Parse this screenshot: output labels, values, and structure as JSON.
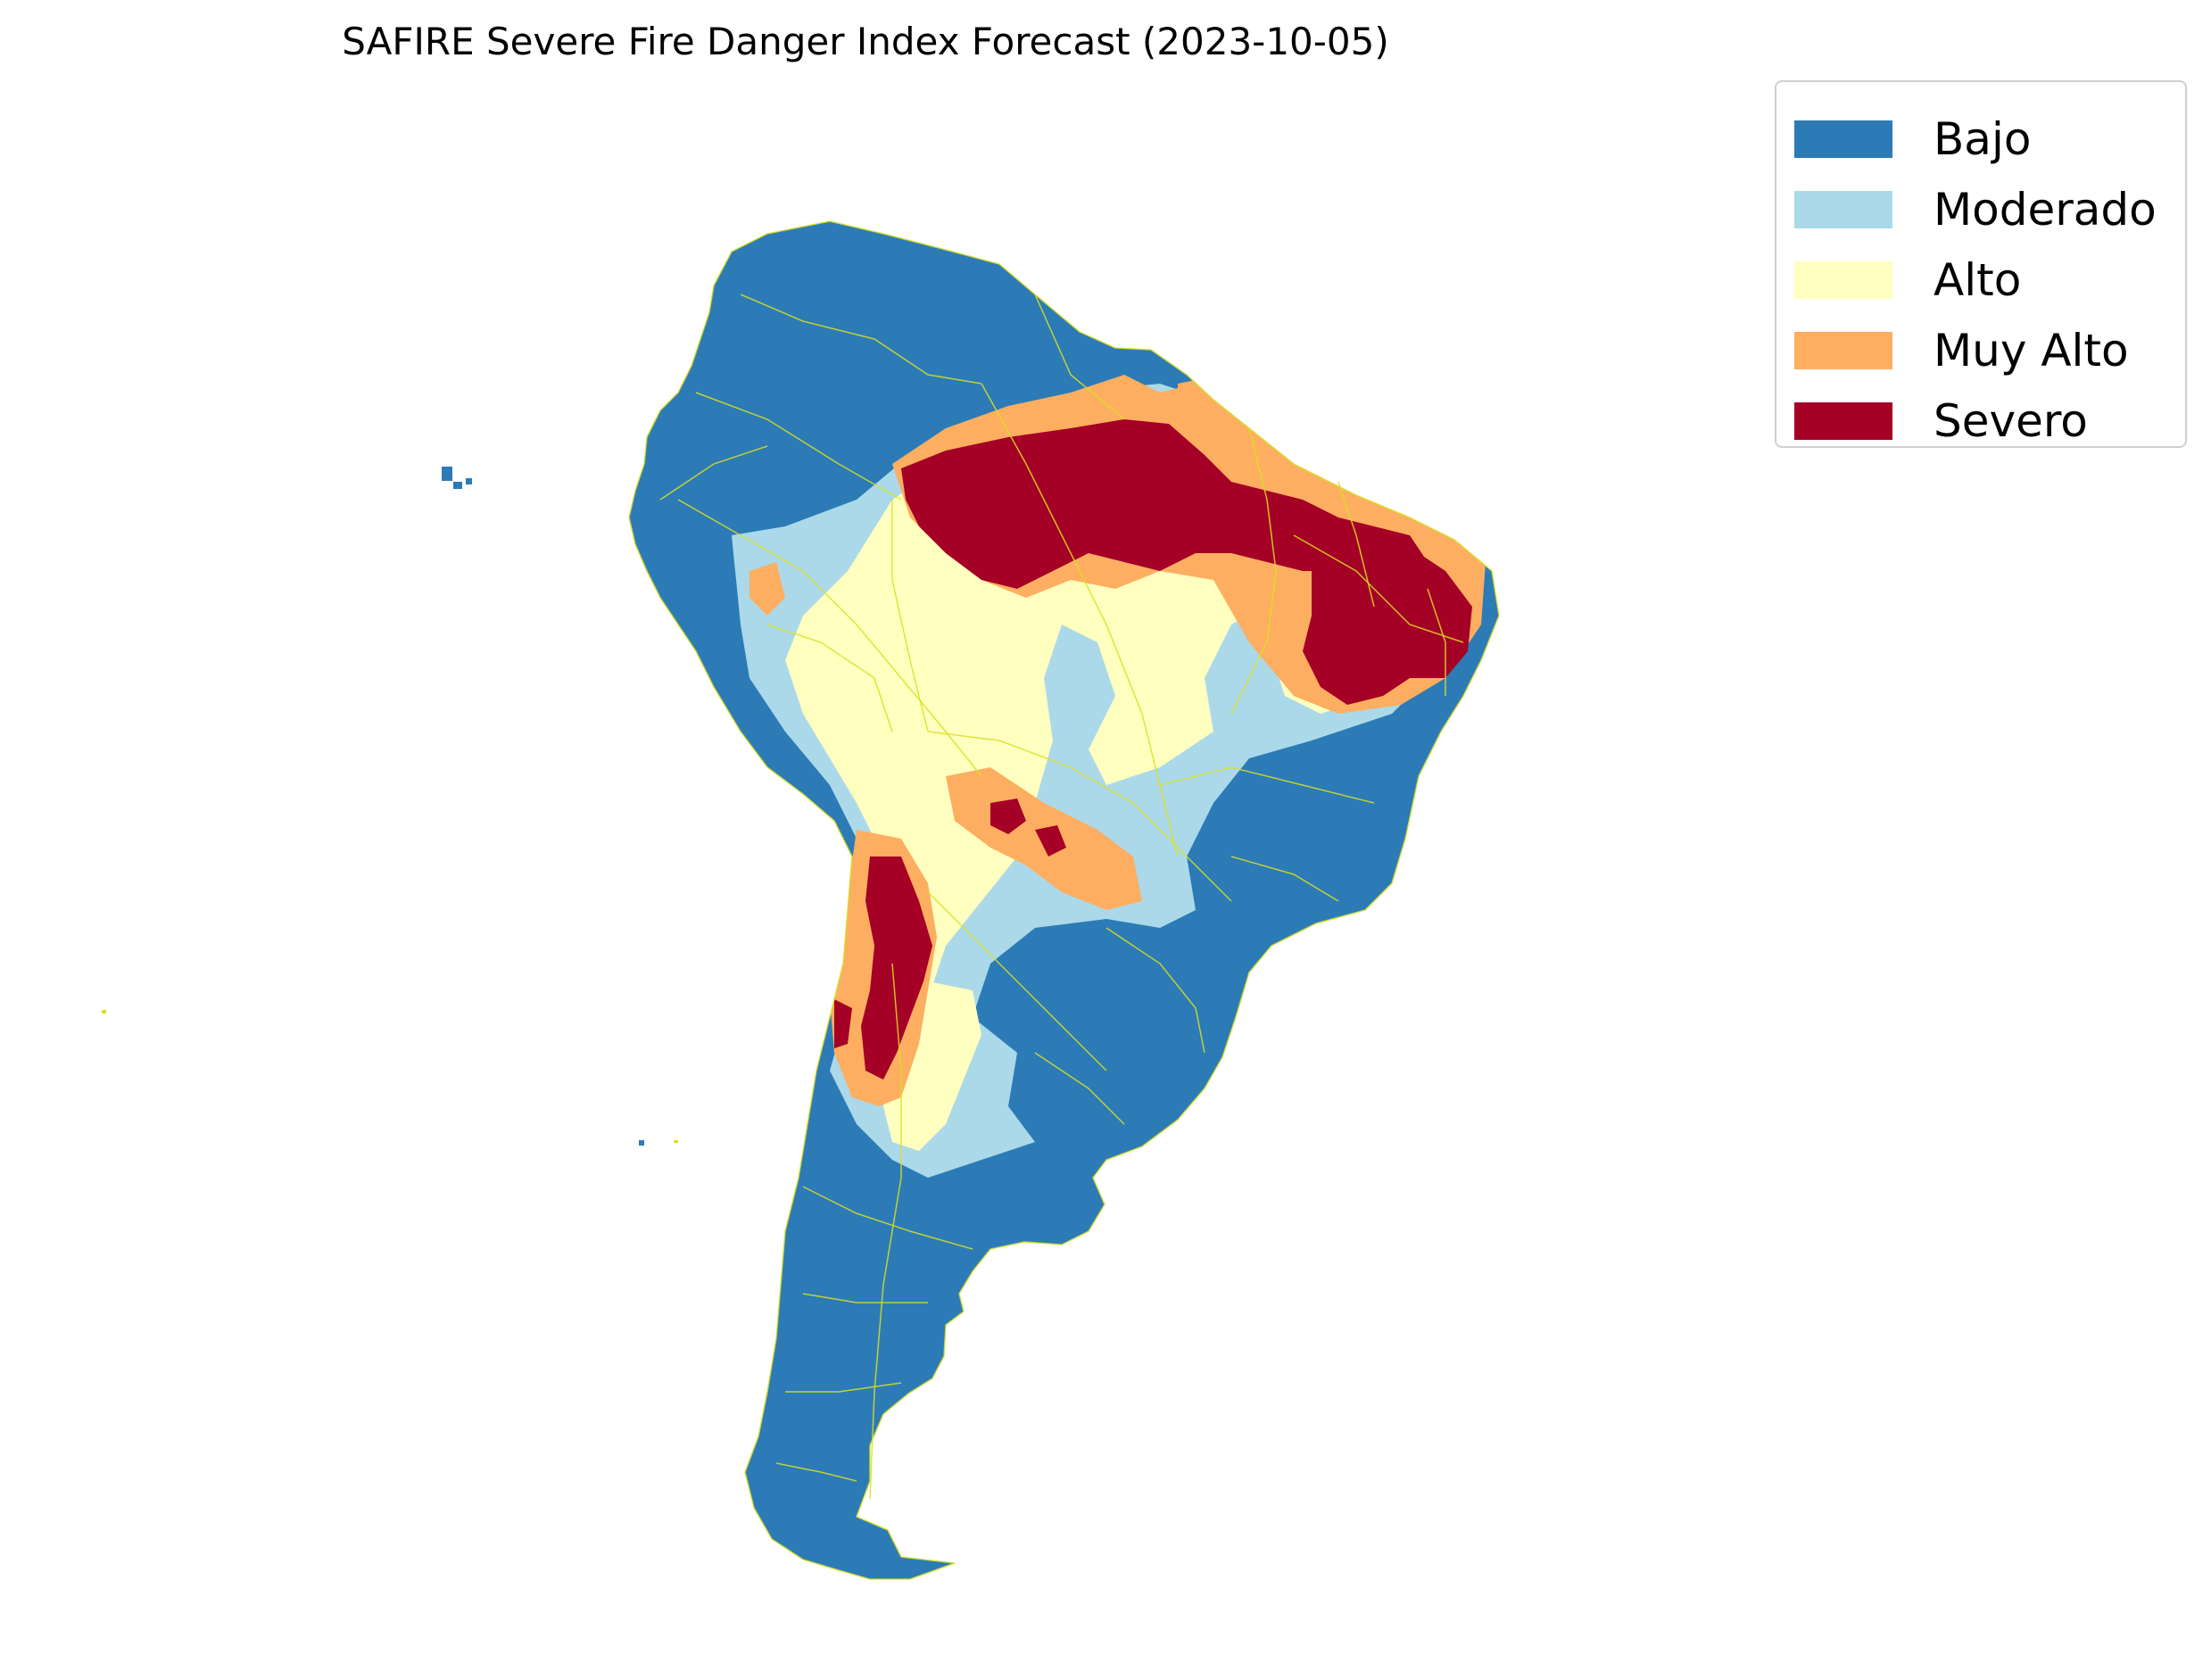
{
  "title": "SAFIRE Severe Fire Danger Index Forecast (2023-10-05)",
  "legend": {
    "items": [
      {
        "label": "Bajo",
        "color": "#2c7bb6"
      },
      {
        "label": "Moderado",
        "color": "#abd9e9"
      },
      {
        "label": "Alto",
        "color": "#ffffbf"
      },
      {
        "label": "Muy Alto",
        "color": "#fdae61"
      },
      {
        "label": "Severo",
        "color": "#a50026"
      }
    ]
  },
  "colors": {
    "border_lines": "#d9e021",
    "background": "#ffffff"
  }
}
